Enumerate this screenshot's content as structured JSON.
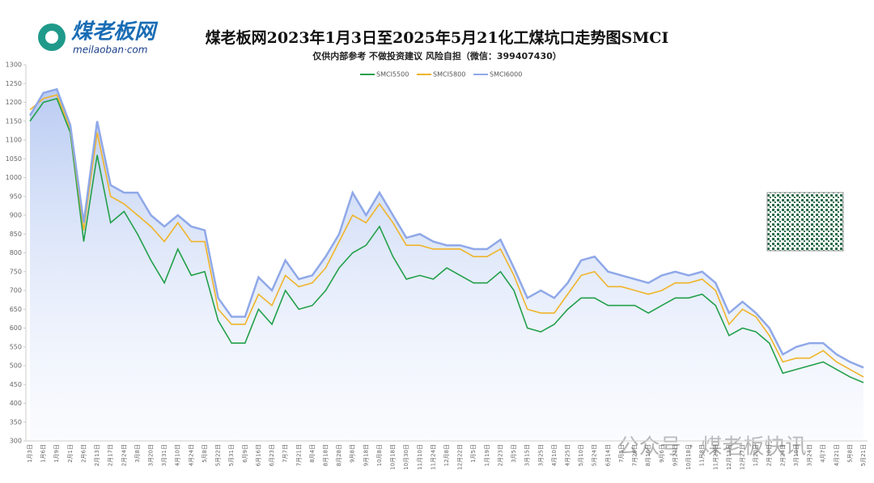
{
  "logo": {
    "name": "煤老板网",
    "domain": "meilaoban·com"
  },
  "watermark": "公众号 · 煤老板快讯",
  "chart_data": {
    "type": "line",
    "title": "煤老板网2023年1月3日至2025年5月21化工煤坑口走势图SMCI",
    "subtitle": "仅供内部参考 不做投资建议 风险自担（微信：399407430）",
    "categories": [
      "1月3日",
      "1月6日",
      "1月9日",
      "2月1日",
      "2月6日",
      "2月13日",
      "2月17日",
      "2月24日",
      "3月8日",
      "3月20日",
      "3月31日",
      "4月10日",
      "4月24日",
      "5月8日",
      "5月22日",
      "5月31日",
      "6月9日",
      "6月16日",
      "6月23日",
      "7月7日",
      "7月21日",
      "8月4日",
      "8月18日",
      "8月28日",
      "9月8日",
      "9月18日",
      "10月8日",
      "10月18日",
      "10月30日",
      "11月10日",
      "11月24日",
      "12月8日",
      "12月22日",
      "1月5日",
      "1月19日",
      "2月23日",
      "3月5日",
      "3月15日",
      "3月25日",
      "4月10日",
      "4月25日",
      "5月10日",
      "5月24日",
      "6月14日",
      "7月5日",
      "7月26日",
      "8月16日",
      "9月6日",
      "9月27日",
      "10月18日",
      "11月8日",
      "11月29日",
      "12月13日",
      "12月27日",
      "1月20日",
      "2月10日",
      "2月24日",
      "3月10日",
      "3月24日",
      "4月7日",
      "4月21日",
      "5月8日",
      "5月21日"
    ],
    "series": [
      {
        "name": "SMCI5500",
        "color": "#22a04a",
        "values": [
          1150,
          1200,
          1210,
          1120,
          830,
          1060,
          880,
          910,
          850,
          780,
          720,
          810,
          740,
          750,
          620,
          560,
          560,
          650,
          610,
          700,
          650,
          660,
          700,
          760,
          800,
          820,
          870,
          790,
          730,
          740,
          730,
          760,
          740,
          720,
          720,
          750,
          700,
          600,
          590,
          610,
          650,
          680,
          680,
          660,
          660,
          660,
          640,
          660,
          680,
          680,
          690,
          660,
          580,
          600,
          590,
          560,
          480,
          490,
          500,
          510,
          490,
          470,
          455
        ]
      },
      {
        "name": "SMCI5800",
        "color": "#f0b429",
        "values": [
          1180,
          1210,
          1220,
          1130,
          860,
          1120,
          950,
          930,
          900,
          870,
          830,
          880,
          830,
          830,
          650,
          610,
          610,
          690,
          660,
          740,
          710,
          720,
          760,
          830,
          900,
          880,
          930,
          880,
          820,
          820,
          810,
          810,
          810,
          790,
          790,
          810,
          740,
          650,
          640,
          640,
          690,
          740,
          750,
          710,
          710,
          700,
          690,
          700,
          720,
          720,
          730,
          700,
          610,
          650,
          630,
          580,
          510,
          520,
          520,
          540,
          510,
          490,
          470
        ]
      },
      {
        "name": "SMCI6000",
        "color": "#8fa8e8",
        "values": [
          1165,
          1225,
          1235,
          1140,
          880,
          1150,
          980,
          960,
          960,
          900,
          870,
          900,
          870,
          860,
          680,
          630,
          630,
          735,
          700,
          780,
          730,
          740,
          790,
          850,
          960,
          900,
          960,
          900,
          840,
          850,
          830,
          820,
          820,
          810,
          810,
          835,
          760,
          680,
          700,
          680,
          720,
          780,
          790,
          750,
          740,
          730,
          720,
          740,
          750,
          740,
          750,
          720,
          640,
          670,
          640,
          600,
          530,
          550,
          560,
          560,
          530,
          510,
          495
        ]
      }
    ],
    "ylim": [
      300,
      1300
    ],
    "yticks": [
      300,
      350,
      400,
      450,
      500,
      550,
      600,
      650,
      700,
      750,
      800,
      850,
      900,
      950,
      1000,
      1050,
      1100,
      1150,
      1200,
      1250,
      1300
    ],
    "grid": false
  }
}
